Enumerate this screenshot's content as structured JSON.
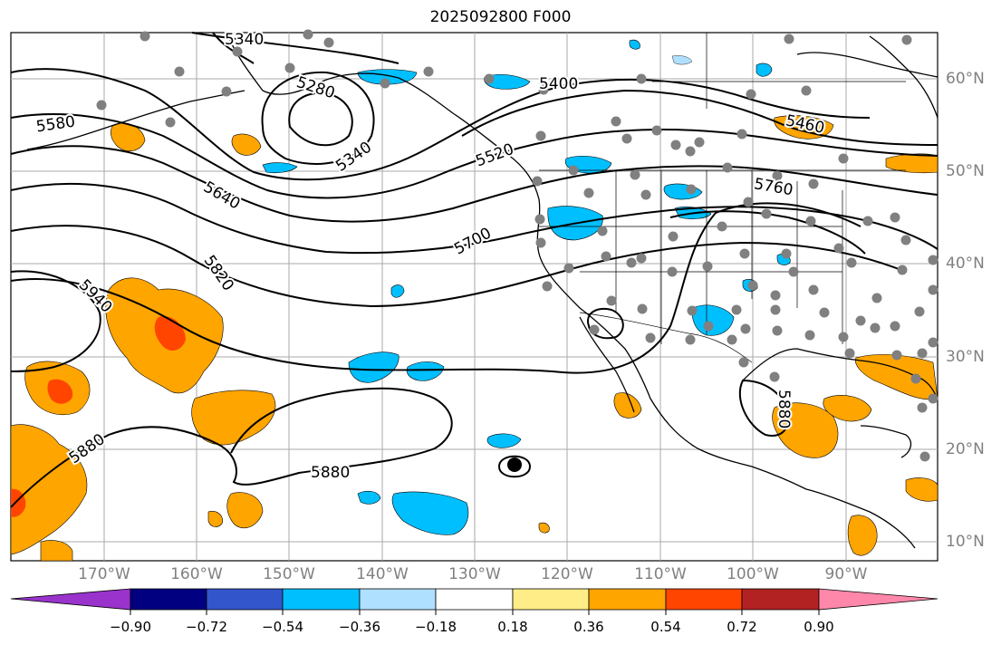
{
  "title": "2025092800 F000",
  "latitude_labels": [
    "60°N",
    "50°N",
    "40°N",
    "30°N",
    "20°N",
    "10°N"
  ],
  "longitude_labels": [
    "170°W",
    "160°W",
    "150°W",
    "140°W",
    "130°W",
    "120°W",
    "110°W",
    "100°W",
    "90°W"
  ],
  "contour_labels": [
    "5340",
    "5280",
    "5340",
    "5400",
    "5460",
    "5520",
    "5580",
    "5640",
    "5700",
    "5760",
    "5820",
    "5940",
    "5880",
    "5880",
    "5880"
  ],
  "colorbar": {
    "colors": [
      "#9933cc",
      "#000080",
      "#3355cc",
      "#00bfff",
      "#b0e0ff",
      "#ffffff",
      "#ffee88",
      "#ffa500",
      "#ff4500",
      "#b22222",
      "#ff88aa"
    ],
    "tick_labels": [
      "−0.90",
      "−0.72",
      "−0.54",
      "−0.36",
      "−0.18",
      "0.18",
      "0.36",
      "0.54",
      "0.72",
      "0.90"
    ]
  },
  "colors": {
    "contour": "#000000",
    "grid": "#aaaaaa",
    "positive_fill": "#ffa500",
    "strong_positive_fill": "#ff4500",
    "negative_fill": "#00bfff",
    "station_dot": "#808080"
  }
}
